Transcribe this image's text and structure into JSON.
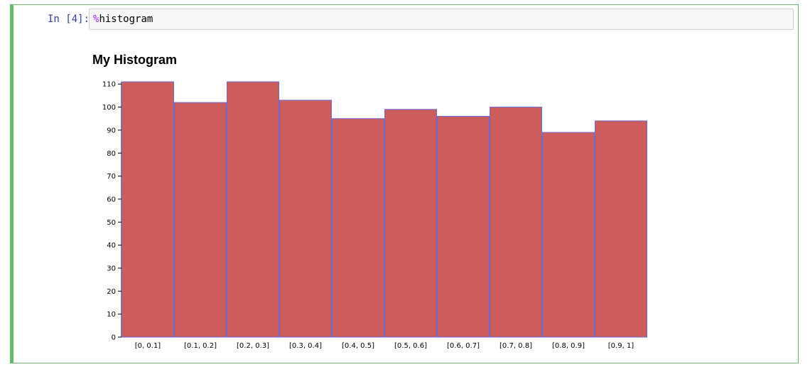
{
  "cell": {
    "prompt": "In [4]:",
    "code_magic": "%",
    "code_rest": "histogram"
  },
  "chart_data": {
    "type": "bar",
    "title": "My Histogram",
    "categories": [
      "[0, 0.1]",
      "[0.1, 0.2]",
      "[0.2, 0.3]",
      "[0.3, 0.4]",
      "[0.4, 0.5]",
      "[0.5, 0.6]",
      "[0.6, 0.7]",
      "[0.7, 0.8]",
      "[0.8, 0.9]",
      "[0.9, 1]"
    ],
    "values": [
      111,
      102,
      111,
      103,
      95,
      99,
      96,
      100,
      89,
      94
    ],
    "yticks": [
      0,
      10,
      20,
      30,
      40,
      50,
      60,
      70,
      80,
      90,
      100,
      110
    ],
    "ylim": [
      0,
      111
    ],
    "grid": false,
    "bar_fill": "#cd5c5c",
    "bar_stroke": "#6b6bd6",
    "xlabel": "",
    "ylabel": ""
  },
  "colors": {
    "cell_border": "#66bb6a",
    "prompt": "#303f9f",
    "magic": "#aa22ff"
  }
}
